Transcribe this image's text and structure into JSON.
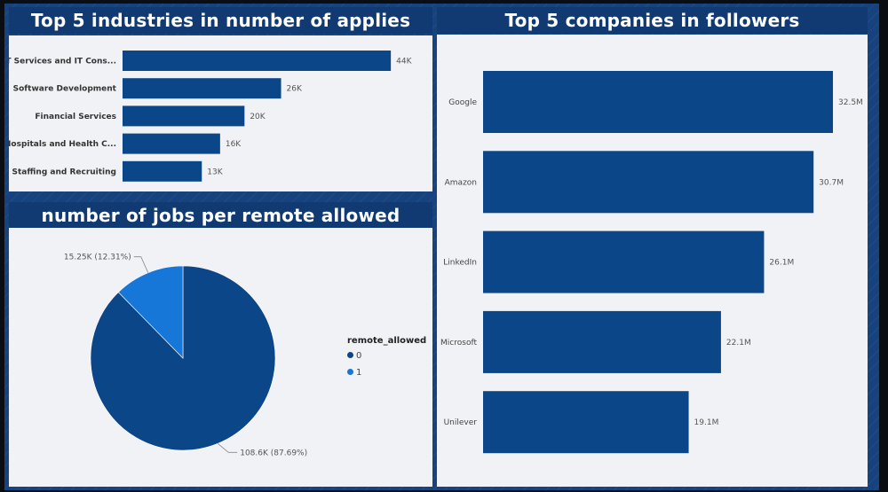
{
  "colors": {
    "bar": "#0b4688",
    "pie_0": "#0b4688",
    "pie_1": "#1677d8"
  },
  "chart_data": [
    {
      "id": "industries",
      "type": "bar",
      "orientation": "horizontal",
      "title": "Top 5 industries in number of applies",
      "categories": [
        "IT Services and IT Cons...",
        "Software Development",
        "Financial Services",
        "Hospitals and Health C...",
        "Staffing and Recruiting"
      ],
      "values": [
        44,
        26,
        20,
        16,
        13
      ],
      "value_labels": [
        "44K",
        "26K",
        "20K",
        "16K",
        "13K"
      ],
      "unit": "K",
      "xlim": [
        0,
        45
      ]
    },
    {
      "id": "remote",
      "type": "pie",
      "title": "number of jobs per remote allowed",
      "legend_title": "remote_allowed",
      "legend_position": "right",
      "slices": [
        {
          "category": "0",
          "value": 108.6,
          "label": "108.6K (87.69%)"
        },
        {
          "category": "1",
          "value": 15.25,
          "label": "15.25K (12.31%)"
        }
      ],
      "unit": "K"
    },
    {
      "id": "companies",
      "type": "bar",
      "orientation": "horizontal",
      "title": "Top 5 companies in followers",
      "categories": [
        "Google",
        "Amazon",
        "LinkedIn",
        "Microsoft",
        "Unilever"
      ],
      "values": [
        32.5,
        30.7,
        26.1,
        22.1,
        19.1
      ],
      "value_labels": [
        "32.5M",
        "30.7M",
        "26.1M",
        "22.1M",
        "19.1M"
      ],
      "unit": "M",
      "xlim": [
        0,
        32.5
      ]
    }
  ]
}
